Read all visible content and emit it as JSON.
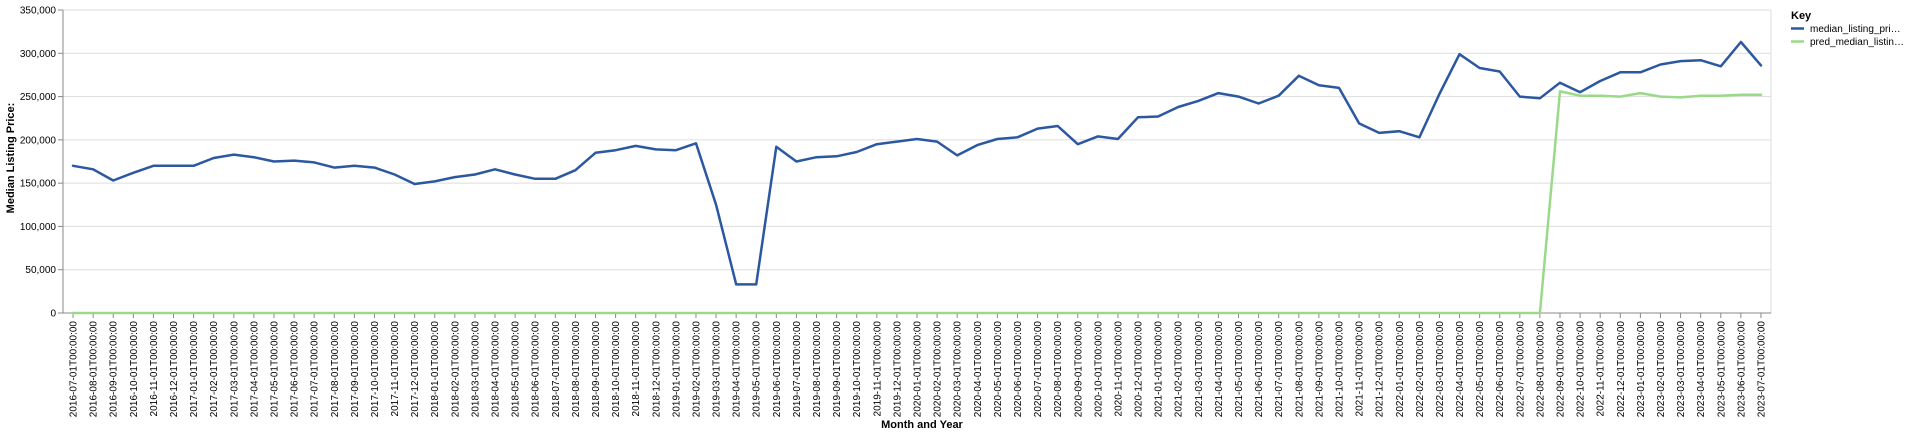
{
  "chart_data": {
    "type": "line",
    "xlabel": "Month and Year",
    "ylabel": "Median Listing Price:",
    "ylim": [
      0,
      350000
    ],
    "yticks": [
      "0",
      "50,000",
      "100,000",
      "150,000",
      "200,000",
      "250,000",
      "300,000",
      "350,000"
    ],
    "ytick_values": [
      0,
      50000,
      100000,
      150000,
      200000,
      250000,
      300000,
      350000
    ],
    "grid": true,
    "legend_position": "right",
    "legend_title": "Key",
    "x": [
      "2016-07-01T00:00:00",
      "2016-08-01T00:00:00",
      "2016-09-01T00:00:00",
      "2016-10-01T00:00:00",
      "2016-11-01T00:00:00",
      "2016-12-01T00:00:00",
      "2017-01-01T00:00:00",
      "2017-02-01T00:00:00",
      "2017-03-01T00:00:00",
      "2017-04-01T00:00:00",
      "2017-05-01T00:00:00",
      "2017-06-01T00:00:00",
      "2017-07-01T00:00:00",
      "2017-08-01T00:00:00",
      "2017-09-01T00:00:00",
      "2017-10-01T00:00:00",
      "2017-11-01T00:00:00",
      "2017-12-01T00:00:00",
      "2018-01-01T00:00:00",
      "2018-02-01T00:00:00",
      "2018-03-01T00:00:00",
      "2018-04-01T00:00:00",
      "2018-05-01T00:00:00",
      "2018-06-01T00:00:00",
      "2018-07-01T00:00:00",
      "2018-08-01T00:00:00",
      "2018-09-01T00:00:00",
      "2018-10-01T00:00:00",
      "2018-11-01T00:00:00",
      "2018-12-01T00:00:00",
      "2019-01-01T00:00:00",
      "2019-02-01T00:00:00",
      "2019-03-01T00:00:00",
      "2019-04-01T00:00:00",
      "2019-05-01T00:00:00",
      "2019-06-01T00:00:00",
      "2019-07-01T00:00:00",
      "2019-08-01T00:00:00",
      "2019-09-01T00:00:00",
      "2019-10-01T00:00:00",
      "2019-11-01T00:00:00",
      "2019-12-01T00:00:00",
      "2020-01-01T00:00:00",
      "2020-02-01T00:00:00",
      "2020-03-01T00:00:00",
      "2020-04-01T00:00:00",
      "2020-05-01T00:00:00",
      "2020-06-01T00:00:00",
      "2020-07-01T00:00:00",
      "2020-08-01T00:00:00",
      "2020-09-01T00:00:00",
      "2020-10-01T00:00:00",
      "2020-11-01T00:00:00",
      "2020-12-01T00:00:00",
      "2021-01-01T00:00:00",
      "2021-02-01T00:00:00",
      "2021-03-01T00:00:00",
      "2021-04-01T00:00:00",
      "2021-05-01T00:00:00",
      "2021-06-01T00:00:00",
      "2021-07-01T00:00:00",
      "2021-08-01T00:00:00",
      "2021-09-01T00:00:00",
      "2021-10-01T00:00:00",
      "2021-11-01T00:00:00",
      "2021-12-01T00:00:00",
      "2022-01-01T00:00:00",
      "2022-02-01T00:00:00",
      "2022-03-01T00:00:00",
      "2022-04-01T00:00:00",
      "2022-05-01T00:00:00",
      "2022-06-01T00:00:00",
      "2022-07-01T00:00:00",
      "2022-08-01T00:00:00",
      "2022-09-01T00:00:00",
      "2022-10-01T00:00:00",
      "2022-11-01T00:00:00",
      "2022-12-01T00:00:00",
      "2023-01-01T00:00:00",
      "2023-02-01T00:00:00",
      "2023-03-01T00:00:00",
      "2023-04-01T00:00:00",
      "2023-05-01T00:00:00",
      "2023-06-01T00:00:00",
      "2023-07-01T00:00:00"
    ],
    "series": [
      {
        "name": "median_listing_pri…",
        "color": "#2b58a0",
        "values": [
          170000,
          166000,
          153000,
          162000,
          170000,
          170000,
          170000,
          179000,
          183000,
          180000,
          175000,
          176000,
          174000,
          168000,
          170000,
          168000,
          160000,
          149000,
          152000,
          157000,
          160000,
          166000,
          160000,
          155000,
          155000,
          165000,
          185000,
          188000,
          193000,
          189000,
          188000,
          196000,
          125000,
          33000,
          33000,
          192000,
          175000,
          180000,
          181000,
          186000,
          195000,
          198000,
          201000,
          198000,
          182000,
          194000,
          201000,
          203000,
          213000,
          216000,
          195000,
          204000,
          201000,
          226000,
          227000,
          238000,
          245000,
          254000,
          250000,
          242000,
          251000,
          274000,
          263000,
          260000,
          219000,
          208000,
          210000,
          203000,
          253000,
          299000,
          283000,
          279000,
          250000,
          248000,
          266000,
          255000,
          268000,
          278000,
          278000,
          287000,
          291000,
          292000,
          285000,
          313000,
          286000
        ]
      },
      {
        "name": "pred_median_listin…",
        "color": "#9bd98a",
        "values": [
          0,
          0,
          0,
          0,
          0,
          0,
          0,
          0,
          0,
          0,
          0,
          0,
          0,
          0,
          0,
          0,
          0,
          0,
          0,
          0,
          0,
          0,
          0,
          0,
          0,
          0,
          0,
          0,
          0,
          0,
          0,
          0,
          0,
          0,
          0,
          0,
          0,
          0,
          0,
          0,
          0,
          0,
          0,
          0,
          0,
          0,
          0,
          0,
          0,
          0,
          0,
          0,
          0,
          0,
          0,
          0,
          0,
          0,
          0,
          0,
          0,
          0,
          0,
          0,
          0,
          0,
          0,
          0,
          0,
          0,
          0,
          0,
          0,
          0,
          256000,
          251000,
          251000,
          250000,
          254000,
          250000,
          249000,
          251000,
          251000,
          252000,
          252000
        ]
      }
    ]
  }
}
